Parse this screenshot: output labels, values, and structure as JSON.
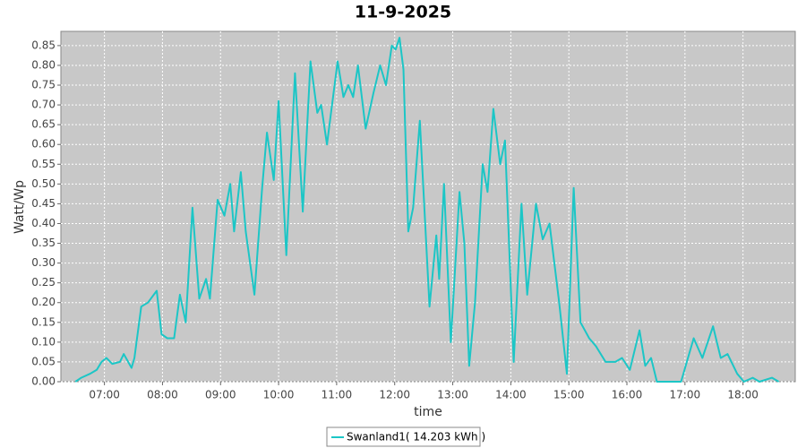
{
  "chart_data": {
    "type": "line",
    "title": "11-9-2025",
    "x_label": "time",
    "y_label": "Watt/Wp",
    "x": [
      390,
      396,
      405,
      412,
      417,
      422,
      428,
      436,
      440,
      448,
      451,
      458,
      465,
      474,
      479,
      485,
      492,
      498,
      504,
      511,
      518,
      525,
      529,
      537,
      544,
      550,
      554,
      561,
      566,
      575,
      583,
      588,
      595,
      600,
      608,
      617,
      625,
      633,
      640,
      644,
      650,
      661,
      667,
      672,
      677,
      682,
      690,
      698,
      705,
      711,
      717,
      721,
      725,
      729,
      734,
      739,
      746,
      756,
      763,
      766,
      771,
      778,
      787,
      792,
      797,
      803,
      811,
      816,
      822,
      829,
      834,
      843,
      851,
      857,
      866,
      873,
      880,
      890,
      898,
      905,
      912,
      921,
      928,
      938,
      948,
      955,
      963,
      973,
      979,
      985,
      991,
      1016,
      1029,
      1038,
      1049,
      1057,
      1064,
      1074,
      1081,
      1090,
      1097,
      1110,
      1117
    ],
    "series": [
      {
        "name": "Swanland1( 14.203 kWh )",
        "color": "#1cc6c6",
        "values": [
          0,
          0.01,
          0.02,
          0.03,
          0.05,
          0.06,
          0.045,
          0.05,
          0.07,
          0.035,
          0.06,
          0.19,
          0.2,
          0.23,
          0.12,
          0.11,
          0.11,
          0.22,
          0.15,
          0.44,
          0.21,
          0.26,
          0.21,
          0.46,
          0.42,
          0.5,
          0.38,
          0.53,
          0.38,
          0.22,
          0.49,
          0.63,
          0.51,
          0.71,
          0.32,
          0.78,
          0.43,
          0.81,
          0.68,
          0.7,
          0.6,
          0.81,
          0.72,
          0.75,
          0.72,
          0.8,
          0.64,
          0.73,
          0.8,
          0.75,
          0.85,
          0.84,
          0.87,
          0.79,
          0.38,
          0.44,
          0.66,
          0.19,
          0.37,
          0.26,
          0.5,
          0.1,
          0.48,
          0.35,
          0.04,
          0.2,
          0.55,
          0.48,
          0.69,
          0.55,
          0.61,
          0.05,
          0.45,
          0.22,
          0.45,
          0.36,
          0.4,
          0.2,
          0.02,
          0.49,
          0.15,
          0.11,
          0.09,
          0.05,
          0.05,
          0.06,
          0.03,
          0.13,
          0.04,
          0.06,
          0,
          0,
          0.11,
          0.06,
          0.14,
          0.06,
          0.07,
          0.02,
          0,
          0.01,
          0,
          0.01,
          0
        ]
      }
    ],
    "xlim": [
      375,
      1134
    ],
    "xticks": [
      {
        "value": 420,
        "label": "07:00"
      },
      {
        "value": 480,
        "label": "08:00"
      },
      {
        "value": 540,
        "label": "09:00"
      },
      {
        "value": 600,
        "label": "10:00"
      },
      {
        "value": 660,
        "label": "11:00"
      },
      {
        "value": 720,
        "label": "12:00"
      },
      {
        "value": 780,
        "label": "13:00"
      },
      {
        "value": 840,
        "label": "14:00"
      },
      {
        "value": 900,
        "label": "15:00"
      },
      {
        "value": 960,
        "label": "16:00"
      },
      {
        "value": 1020,
        "label": "17:00"
      },
      {
        "value": 1080,
        "label": "18:00"
      }
    ],
    "ylim": [
      0,
      0.886
    ],
    "yticks": [
      {
        "value": 0,
        "label": "0.00"
      },
      {
        "value": 0.05,
        "label": "0.05"
      },
      {
        "value": 0.1,
        "label": "0.10"
      },
      {
        "value": 0.15,
        "label": "0.15"
      },
      {
        "value": 0.2,
        "label": "0.20"
      },
      {
        "value": 0.25,
        "label": "0.25"
      },
      {
        "value": 0.3,
        "label": "0.30"
      },
      {
        "value": 0.35,
        "label": "0.35"
      },
      {
        "value": 0.4,
        "label": "0.40"
      },
      {
        "value": 0.45,
        "label": "0.45"
      },
      {
        "value": 0.5,
        "label": "0.50"
      },
      {
        "value": 0.55,
        "label": "0.55"
      },
      {
        "value": 0.6,
        "label": "0.60"
      },
      {
        "value": 0.65,
        "label": "0.65"
      },
      {
        "value": 0.7,
        "label": "0.70"
      },
      {
        "value": 0.75,
        "label": "0.75"
      },
      {
        "value": 0.8,
        "label": "0.80"
      },
      {
        "value": 0.85,
        "label": "0.85"
      }
    ],
    "grid": true,
    "legend": "bottom"
  }
}
